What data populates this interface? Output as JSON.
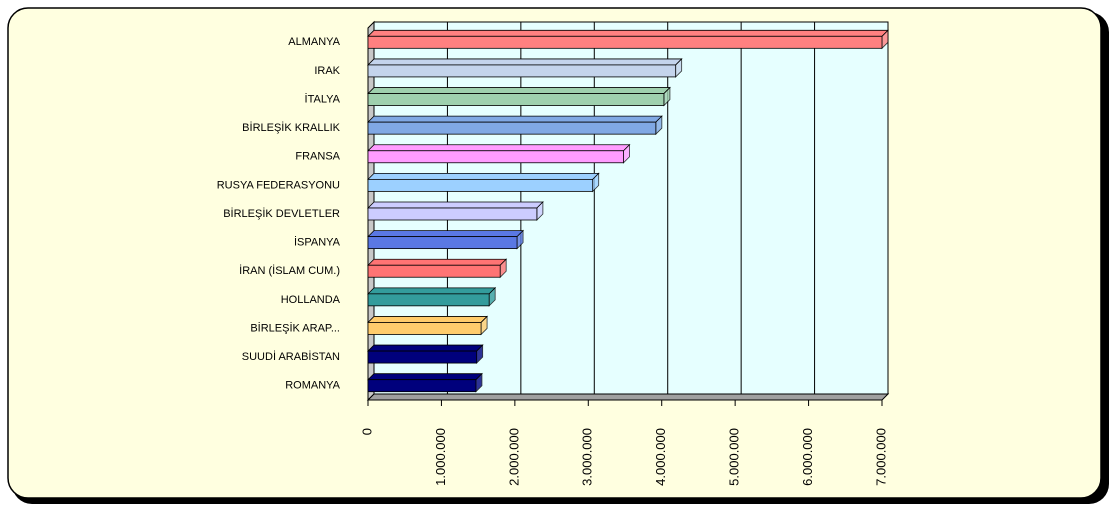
{
  "chart_data": {
    "type": "bar3d_horizontal",
    "categories": [
      "ALMANYA",
      "IRAK",
      "İTALYA",
      "BİRLEŞİK KRALLIK",
      "FRANSA",
      "RUSYA FEDERASYONU",
      "BİRLEŞİK DEVLETLER",
      "İSPANYA",
      "İRAN (İSLAM CUM.)",
      "HOLLANDA",
      "BİRLEŞİK ARAP...",
      "SUUDİ ARABİSTAN",
      "ROMANYA"
    ],
    "values": [
      7000000,
      4190000,
      4030000,
      3920000,
      3480000,
      3060000,
      2300000,
      2030000,
      1800000,
      1650000,
      1540000,
      1480000,
      1470000
    ],
    "colors": [
      "#ff8080",
      "#c4d4ec",
      "#9fd0ae",
      "#80a8e4",
      "#ff9cff",
      "#9cd0ff",
      "#ccccff",
      "#5a78e4",
      "#ff7474",
      "#339c9c",
      "#ffcc6c",
      "#00007c",
      "#00007c"
    ],
    "xlim": [
      0,
      7000000
    ],
    "xticks": [
      0,
      {
        "value": 1000000,
        "label": "1.000.000"
      },
      {
        "value": 2000000,
        "label": "2.000.000"
      },
      {
        "value": 3000000,
        "label": "3.000.000"
      },
      {
        "value": 4000000,
        "label": "4.000.000"
      },
      {
        "value": 5000000,
        "label": "5.000.000"
      },
      {
        "value": 6000000,
        "label": "6.000.000"
      },
      {
        "value": 7000000,
        "label": "7.000.000"
      }
    ],
    "grid": true
  }
}
